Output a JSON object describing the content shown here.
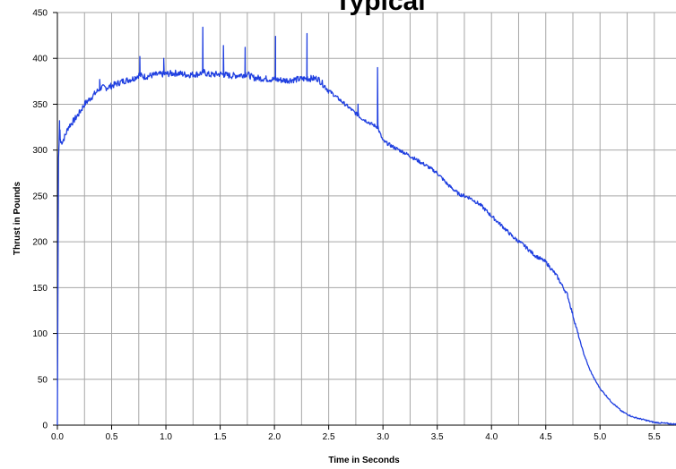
{
  "chart_data": {
    "type": "line",
    "title": "Typical",
    "xlabel": "Time in Seconds",
    "ylabel": "Thrust in Pounds",
    "xlim": [
      0,
      5.7
    ],
    "ylim": [
      0,
      450
    ],
    "x_ticks": [
      "0.0",
      "0.5",
      "1.0",
      "1.5",
      "2.0",
      "2.5",
      "3.0",
      "3.5",
      "4.0",
      "4.5",
      "5.0",
      "5.5"
    ],
    "y_ticks": [
      "0",
      "50",
      "100",
      "150",
      "200",
      "250",
      "300",
      "350",
      "400",
      "450"
    ],
    "grid": true,
    "legend": "none",
    "colors": {
      "line": "#1f3fe0",
      "grid": "#a6a6a6",
      "axis": "#000000",
      "background": "#ffffff"
    },
    "series": [
      {
        "x": [
          0,
          0.01,
          0.02,
          0.03,
          0.05,
          0.08,
          0.1,
          0.15,
          0.2,
          0.25,
          0.3,
          0.35,
          0.4,
          0.45,
          0.5,
          0.6,
          0.7,
          0.75,
          0.8,
          0.9,
          1.0,
          1.1,
          1.2,
          1.3,
          1.35,
          1.4,
          1.5,
          1.6,
          1.7,
          1.75,
          1.8,
          1.9,
          2.0,
          2.1,
          2.2,
          2.3,
          2.4,
          2.5,
          2.6,
          2.7,
          2.8,
          2.9,
          2.95,
          3.0,
          3.1,
          3.2,
          3.3,
          3.4,
          3.5,
          3.6,
          3.7,
          3.8,
          3.9,
          4.0,
          4.1,
          4.2,
          4.3,
          4.4,
          4.5,
          4.6,
          4.7,
          4.75,
          4.8,
          4.85,
          4.9,
          4.95,
          5.0,
          5.1,
          5.2,
          5.3,
          5.4,
          5.5,
          5.6,
          5.7
        ],
        "y": [
          0,
          290,
          320,
          308,
          310,
          318,
          325,
          332,
          340,
          350,
          356,
          362,
          368,
          368,
          370,
          375,
          378,
          382,
          380,
          382,
          383,
          384,
          382,
          383,
          385,
          382,
          383,
          381,
          382,
          383,
          379,
          378,
          377,
          376,
          377,
          378,
          378,
          365,
          355,
          345,
          335,
          328,
          325,
          310,
          303,
          297,
          290,
          283,
          275,
          262,
          252,
          248,
          240,
          228,
          217,
          205,
          196,
          185,
          178,
          163,
          142,
          120,
          98,
          78,
          62,
          50,
          40,
          26,
          15,
          9,
          6,
          3,
          2,
          1
        ]
      }
    ],
    "spikes": [
      {
        "x": 0.02,
        "y": 332
      },
      {
        "x": 0.39,
        "y": 377
      },
      {
        "x": 0.76,
        "y": 402
      },
      {
        "x": 0.98,
        "y": 400
      },
      {
        "x": 1.34,
        "y": 434
      },
      {
        "x": 1.53,
        "y": 414
      },
      {
        "x": 1.73,
        "y": 412
      },
      {
        "x": 2.01,
        "y": 424
      },
      {
        "x": 2.3,
        "y": 427
      },
      {
        "x": 2.77,
        "y": 350
      },
      {
        "x": 2.95,
        "y": 390
      }
    ]
  }
}
